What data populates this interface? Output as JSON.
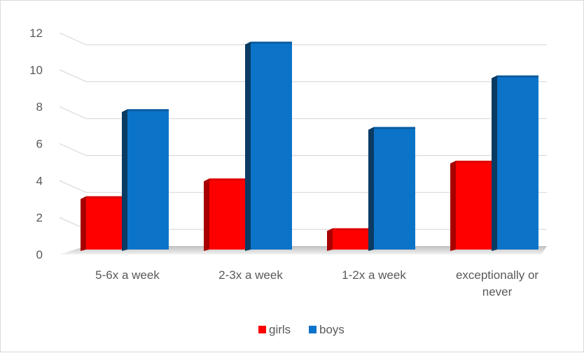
{
  "chart_data": {
    "type": "bar",
    "style": "3d-clustered-column",
    "categories": [
      "5-6x a week",
      "2-3x a week",
      "1-2x a week",
      "exceptionally or never"
    ],
    "category_label_lines": [
      [
        "5-6x a week"
      ],
      [
        "2-3x a week"
      ],
      [
        "1-2x a week"
      ],
      [
        "exceptionally or",
        "never"
      ]
    ],
    "series": [
      {
        "name": "girls",
        "values": [
          3,
          4,
          1.2,
          5
        ],
        "color": "#ff0000",
        "side_color": "#a80000",
        "top_color": "#c80000"
      },
      {
        "name": "boys",
        "values": [
          7.9,
          11.7,
          6.9,
          9.8
        ],
        "color": "#0b74c9",
        "side_color": "#0a3b63",
        "top_color": "#0d4f86"
      }
    ],
    "ylim": [
      0,
      12
    ],
    "yticks": [
      "0",
      "2",
      "4",
      "6",
      "8",
      "10",
      "12"
    ],
    "grid": true,
    "legend_position": "bottom",
    "title": "",
    "xlabel": "",
    "ylabel": ""
  }
}
